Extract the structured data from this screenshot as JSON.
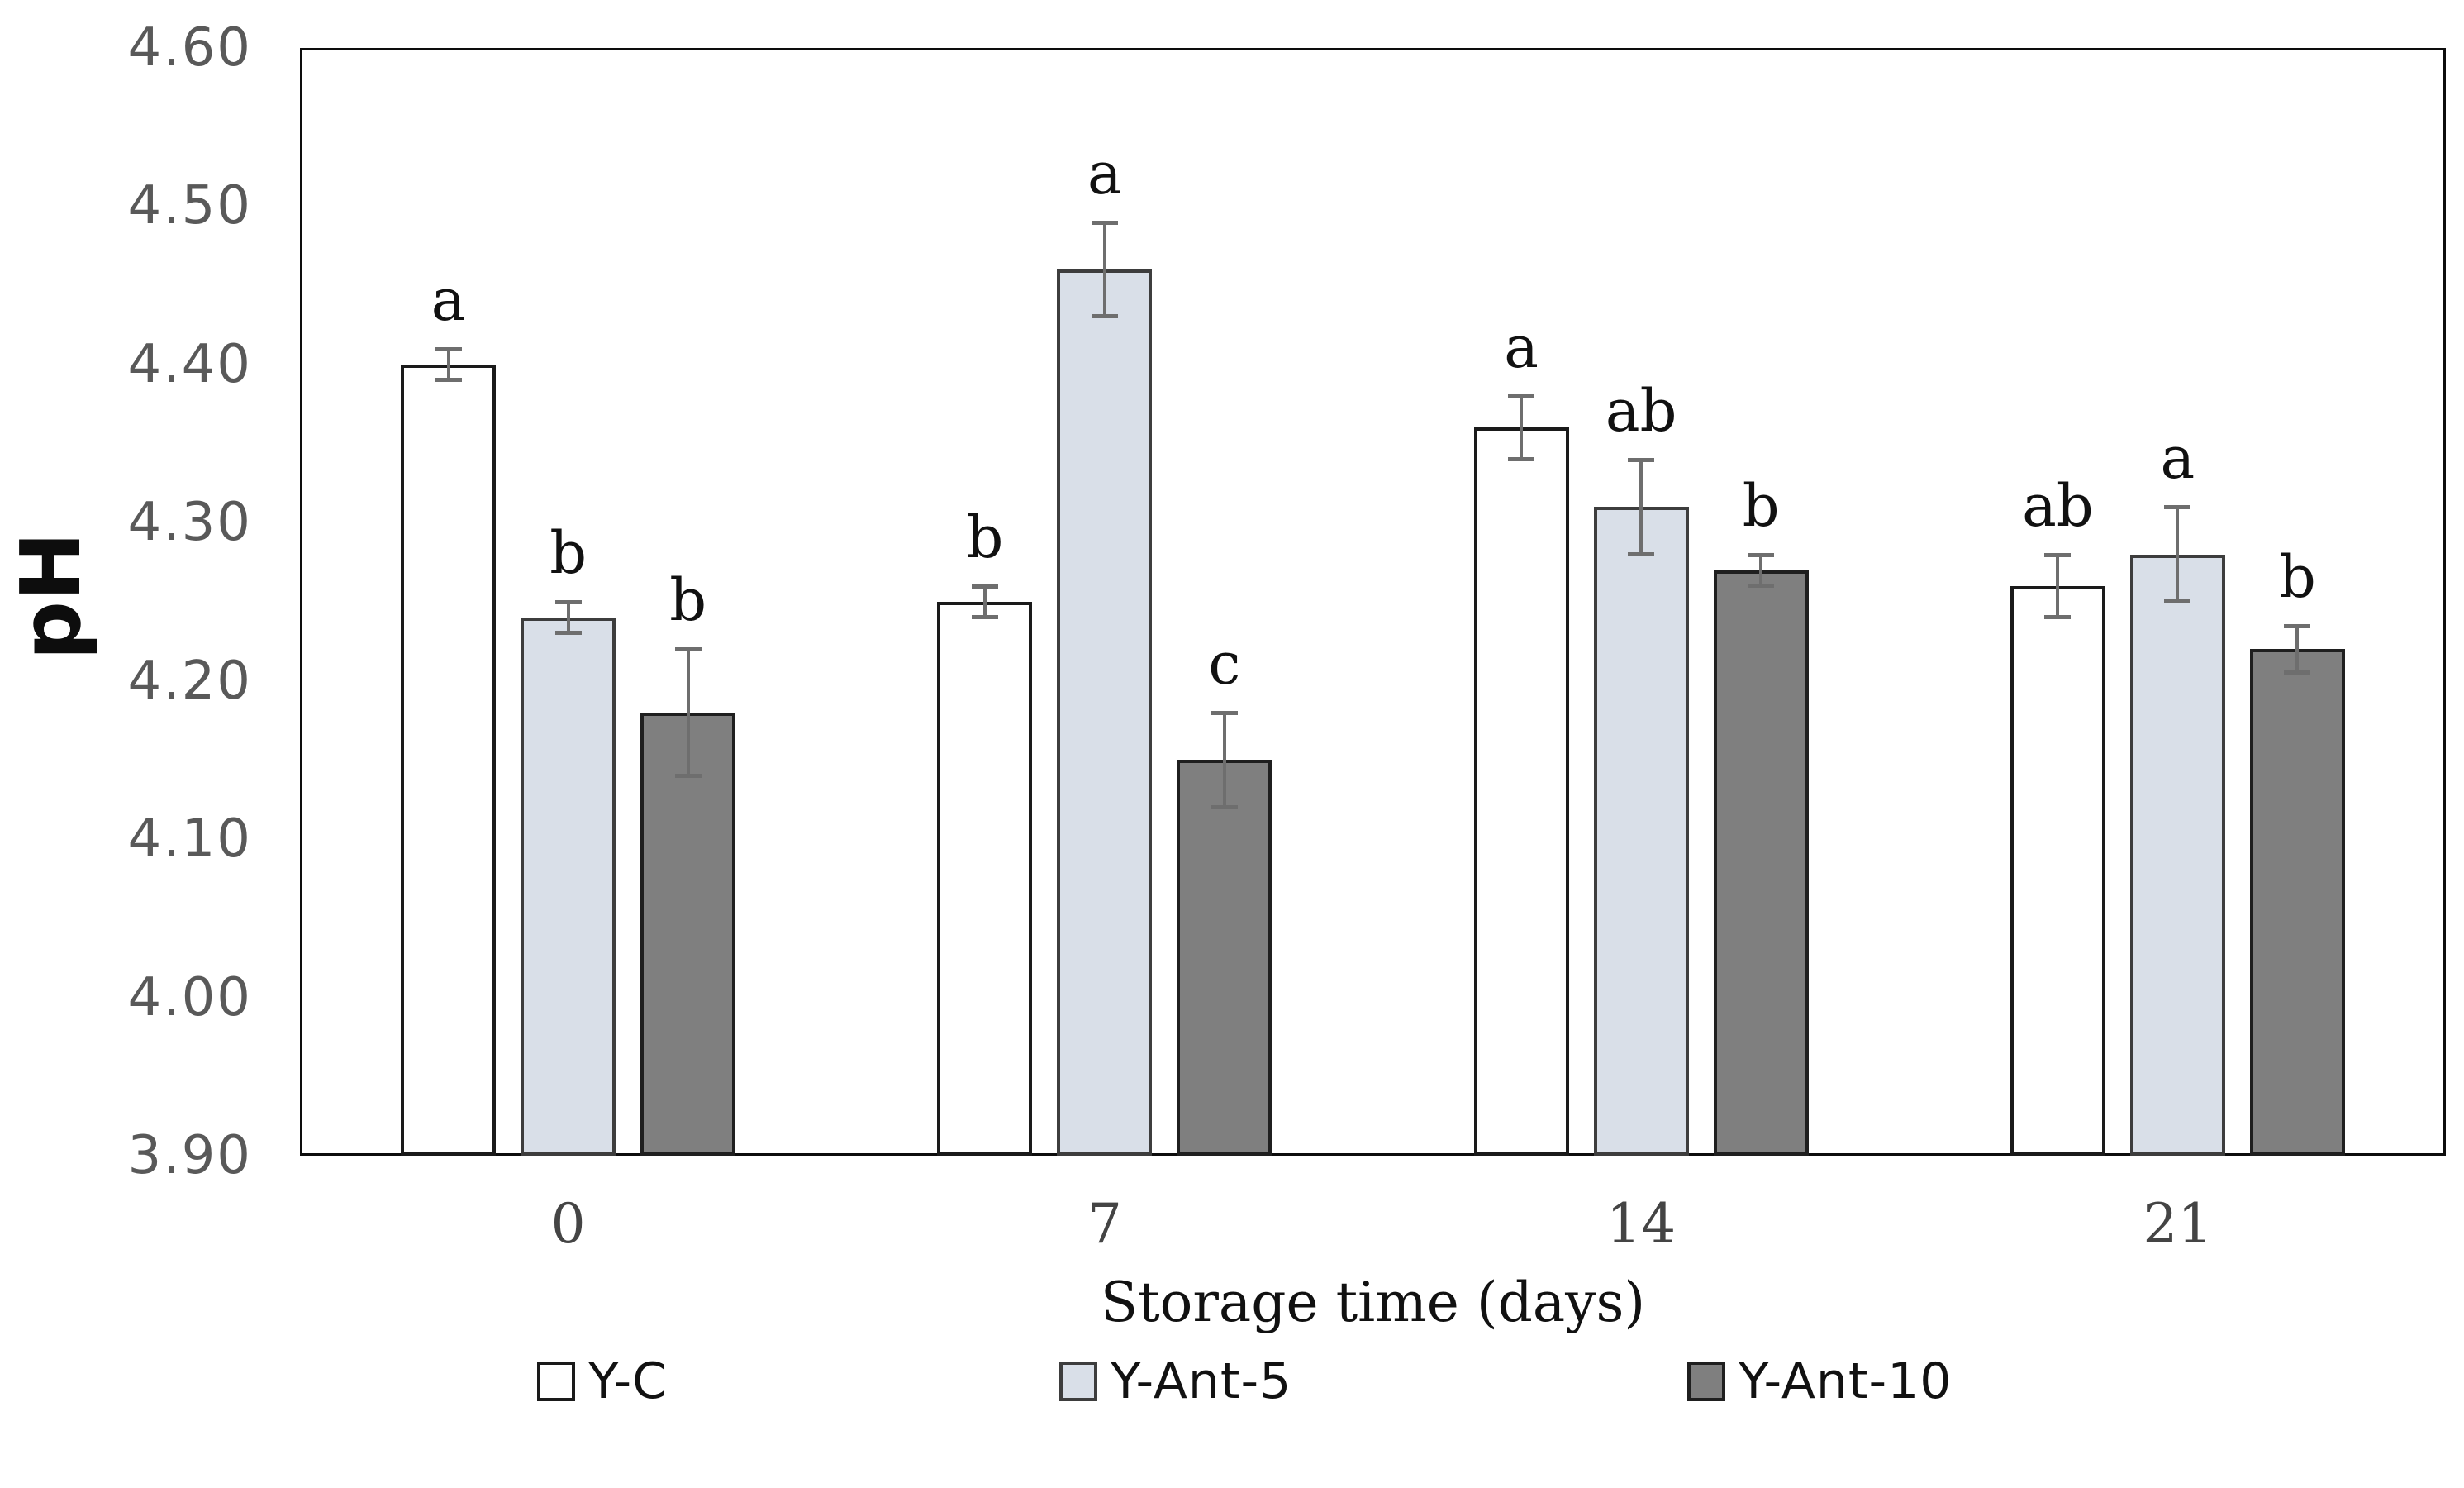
{
  "chart_data": {
    "type": "bar",
    "title": "",
    "ylabel": "pH",
    "xlabel": "Storage time (days)",
    "ylim": [
      3.9,
      4.6
    ],
    "ytick_step": 0.1,
    "ytick_labels": [
      "4.60",
      "4.50",
      "4.40",
      "4.30",
      "4.20",
      "4.10",
      "4.00",
      "3.90"
    ],
    "categories": [
      "0",
      "7",
      "14",
      "21"
    ],
    "series": [
      {
        "name": "Y-C",
        "fill": "#ffffff",
        "border": "#1a1a1a",
        "values": [
          4.4,
          4.25,
          4.36,
          4.26
        ],
        "errors": [
          0.01,
          0.01,
          0.02,
          0.02
        ],
        "letters": [
          "a",
          "b",
          "a",
          "ab"
        ]
      },
      {
        "name": "Y-Ant-5",
        "fill": "#d9dfe8",
        "border": "#3d3d3d",
        "values": [
          4.24,
          4.46,
          4.31,
          4.28
        ],
        "errors": [
          0.01,
          0.03,
          0.03,
          0.03
        ],
        "letters": [
          "b",
          "a",
          "ab",
          "a"
        ]
      },
      {
        "name": "Y-Ant-10",
        "fill": "#7f7f7f",
        "border": "#1f1f1f",
        "values": [
          4.18,
          4.15,
          4.27,
          4.22
        ],
        "errors": [
          0.04,
          0.03,
          0.01,
          0.015
        ],
        "letters": [
          "b",
          "c",
          "b",
          "b"
        ]
      }
    ],
    "grid": false,
    "legend_position": "bottom",
    "colors": {
      "error_bar": "#6e6e6e",
      "y_tick_text": "#595959",
      "x_tick_text": "#444444",
      "axis_frame": "#0d0d0d",
      "letter_text": "#111111"
    }
  }
}
